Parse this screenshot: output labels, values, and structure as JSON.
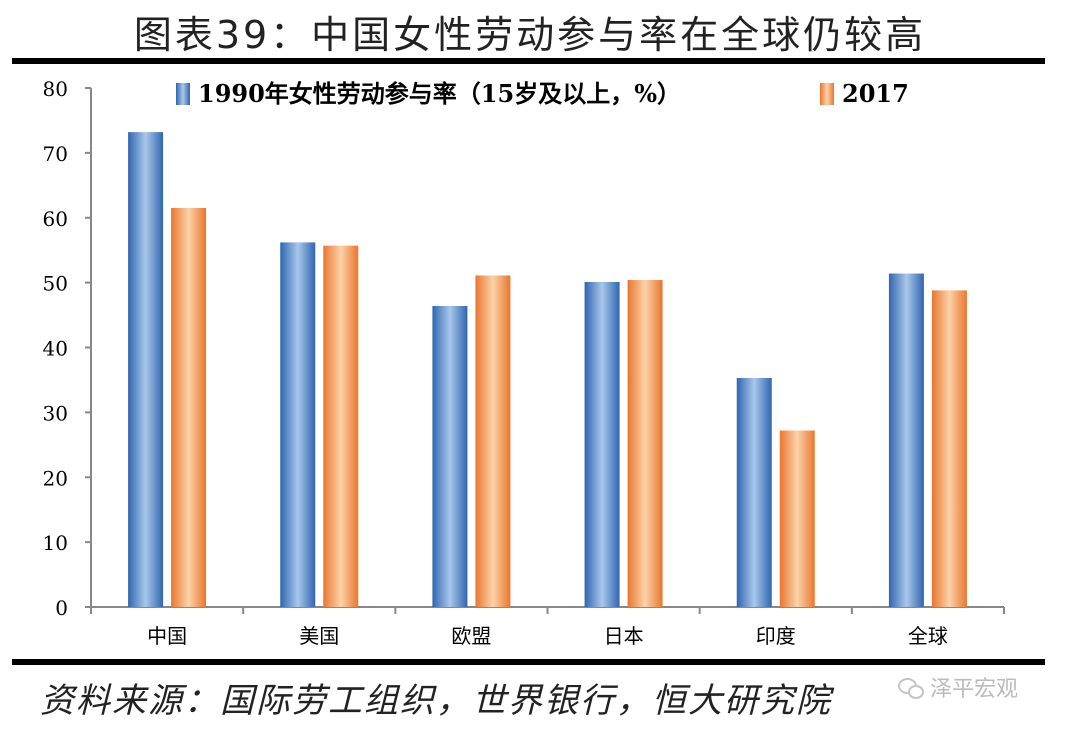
{
  "title": "图表39：中国女性劳动参与率在全球仍较高",
  "source": "资料来源：国际劳工组织，世界银行，恒大研究院",
  "watermark": {
    "icon": "wechat-icon",
    "text": "泽平宏观"
  },
  "colors": {
    "series1": "#4a7fc1",
    "series1_light": "#a9c7ea",
    "series2": "#ee8a4a",
    "series2_light": "#fcd2a8",
    "axis": "#888888",
    "rule": "#000000"
  },
  "chart_data": {
    "type": "bar",
    "categories": [
      "中国",
      "美国",
      "欧盟",
      "日本",
      "印度",
      "全球"
    ],
    "series": [
      {
        "name": "1990年女性劳动参与率（15岁及以上，%）",
        "values": [
          73.2,
          56.2,
          46.4,
          50.1,
          35.3,
          51.4
        ]
      },
      {
        "name": "2017",
        "values": [
          61.5,
          55.7,
          51.1,
          50.4,
          27.2,
          48.8
        ]
      }
    ],
    "yticks": [
      "0",
      "10",
      "20",
      "30",
      "40",
      "50",
      "60",
      "70",
      "80"
    ],
    "ylim": [
      0,
      80
    ],
    "grid": false,
    "legend_position": "top"
  }
}
